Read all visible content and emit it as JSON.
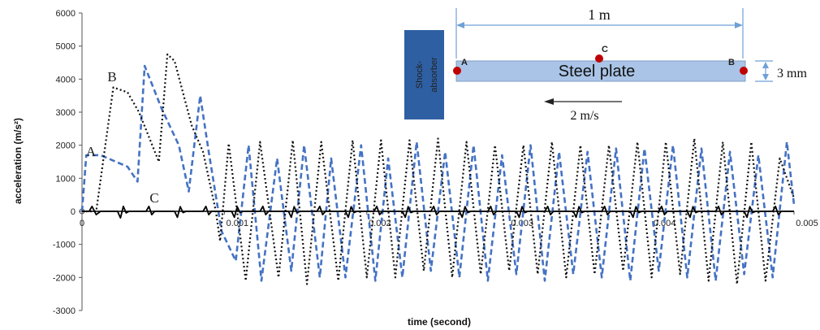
{
  "chart_data": {
    "type": "line",
    "xlabel": "time (second)",
    "ylabel": "acceleration (m/s²)",
    "xlim": [
      0,
      0.005
    ],
    "ylim": [
      -3000,
      6000
    ],
    "x_ticks": [
      "0",
      "0.001",
      "0.002",
      "0.003",
      "0.004",
      "0.005"
    ],
    "y_ticks": [
      "-3000",
      "-2000",
      "-1000",
      "0",
      "1000",
      "2000",
      "3000",
      "4000",
      "5000",
      "6000"
    ],
    "series": [
      {
        "name": "A",
        "style": "dashed",
        "color": "#4472C4",
        "x": [
          0.0,
          3e-05,
          0.00013,
          0.00032,
          0.00039,
          0.00044,
          0.00056,
          0.00068,
          0.00075,
          0.00083,
          0.00089,
          0.00098,
          0.00108,
          0.00117,
          0.00126,
          0.00137,
          0.00147,
          0.00156,
          0.00167,
          0.00175,
          0.00185,
          0.00196,
          0.00206,
          0.00215,
          0.00225,
          0.00235,
          0.00245,
          0.00255,
          0.00265,
          0.00275,
          0.00285,
          0.00295,
          0.00305,
          0.00315,
          0.00325,
          0.00335,
          0.00345,
          0.00355,
          0.00365,
          0.00375,
          0.00385,
          0.00395,
          0.00405,
          0.00415,
          0.00425,
          0.00435,
          0.00445,
          0.00455,
          0.00465,
          0.00475,
          0.00485,
          0.00495,
          0.005
        ],
        "y": [
          0,
          1700,
          1700,
          1350,
          900,
          4400,
          3100,
          2000,
          600,
          3500,
          1800,
          -600,
          -1500,
          2000,
          -2100,
          1600,
          -1800,
          2000,
          -2000,
          1600,
          -2000,
          2000,
          -2100,
          1600,
          -2000,
          2100,
          -1800,
          1800,
          -2000,
          2000,
          -2100,
          1700,
          -1900,
          2000,
          -2100,
          1800,
          -1900,
          1800,
          -2000,
          1900,
          -2100,
          1900,
          -1800,
          2000,
          -2000,
          1900,
          -2100,
          1800,
          -1900,
          1700,
          -2000,
          2100,
          200
        ]
      },
      {
        "name": "B",
        "style": "dotted",
        "color": "#111111",
        "x": [
          0.0,
          0.0001,
          0.00022,
          0.00032,
          0.0004,
          0.00054,
          0.0006,
          0.00065,
          0.00077,
          0.00085,
          0.00094,
          0.00097,
          0.00103,
          0.00115,
          0.00125,
          0.00138,
          0.00148,
          0.00158,
          0.00168,
          0.0018,
          0.0019,
          0.002,
          0.0021,
          0.0022,
          0.0023,
          0.0024,
          0.0025,
          0.0026,
          0.0027,
          0.0028,
          0.0029,
          0.003,
          0.0031,
          0.0032,
          0.0033,
          0.0034,
          0.0035,
          0.0036,
          0.0037,
          0.0038,
          0.0039,
          0.004,
          0.0041,
          0.0042,
          0.0043,
          0.0044,
          0.0045,
          0.0046,
          0.0047,
          0.0048,
          0.0049,
          0.005
        ],
        "y": [
          0,
          0,
          3750,
          3600,
          3000,
          1500,
          4750,
          4550,
          2600,
          1800,
          0,
          -900,
          2050,
          -2100,
          2100,
          -2000,
          2150,
          -2200,
          2100,
          -2100,
          2150,
          -2000,
          2150,
          -2000,
          2150,
          -1800,
          2200,
          -2000,
          2100,
          -1900,
          2000,
          -1800,
          2000,
          -1900,
          2100,
          -2000,
          2000,
          -1900,
          2000,
          -1800,
          2100,
          -2000,
          2100,
          -1900,
          2200,
          -2100,
          2100,
          -2200,
          2100,
          -2100,
          1600,
          400
        ]
      },
      {
        "name": "C",
        "style": "solid",
        "color": "#000000",
        "x": [
          0.0,
          5e-05,
          7e-05,
          0.0001,
          0.00013,
          0.00025,
          0.00027,
          0.00029,
          0.00031,
          0.00033,
          0.00045,
          0.00047,
          0.00049,
          0.00051,
          0.00053,
          0.00065,
          0.00067,
          0.00069,
          0.00071,
          0.00073,
          0.00085,
          0.00087,
          0.00089,
          0.00091,
          0.00093,
          0.00105,
          0.00107,
          0.00109,
          0.00111,
          0.00113,
          0.00125,
          0.00127,
          0.00129,
          0.00131,
          0.00133,
          0.00145,
          0.00147,
          0.00149,
          0.00151,
          0.00153,
          0.00165,
          0.00167,
          0.00169,
          0.00171,
          0.00173,
          0.00185,
          0.00187,
          0.00189,
          0.00191,
          0.00193,
          0.00205,
          0.00207,
          0.00209,
          0.00211,
          0.00213,
          0.00225,
          0.00227,
          0.00229,
          0.00231,
          0.00233,
          0.00245,
          0.00247,
          0.00249,
          0.00251,
          0.00253,
          0.00265,
          0.00267,
          0.00269,
          0.00271,
          0.00273,
          0.00285,
          0.00287,
          0.00289,
          0.00291,
          0.00293,
          0.00305,
          0.00307,
          0.00309,
          0.00311,
          0.00313,
          0.00325,
          0.00327,
          0.00329,
          0.00331,
          0.00333,
          0.00345,
          0.00347,
          0.00349,
          0.00351,
          0.00353,
          0.00365,
          0.00367,
          0.00369,
          0.00371,
          0.00373,
          0.00385,
          0.00387,
          0.00389,
          0.00391,
          0.00393,
          0.00405,
          0.00407,
          0.00409,
          0.00411,
          0.00413,
          0.00425,
          0.00427,
          0.00429,
          0.00431,
          0.00433,
          0.00445,
          0.00447,
          0.00449,
          0.00451,
          0.00453,
          0.00465,
          0.00467,
          0.00469,
          0.00471,
          0.00473,
          0.00485,
          0.00487,
          0.00489,
          0.00491,
          0.00493,
          0.005
        ],
        "y": [
          0,
          0,
          150,
          -100,
          0,
          0,
          -200,
          150,
          -50,
          0,
          0,
          150,
          -100,
          0,
          0,
          0,
          -180,
          140,
          -40,
          0,
          0,
          150,
          -100,
          0,
          0,
          0,
          -180,
          140,
          -40,
          0,
          0,
          150,
          -100,
          0,
          0,
          0,
          -180,
          140,
          -40,
          0,
          0,
          150,
          -100,
          0,
          0,
          0,
          -180,
          140,
          -40,
          0,
          0,
          150,
          -100,
          0,
          0,
          0,
          -180,
          140,
          -40,
          0,
          0,
          150,
          -100,
          0,
          0,
          0,
          -180,
          140,
          -40,
          0,
          0,
          150,
          -100,
          0,
          0,
          0,
          -180,
          140,
          -40,
          0,
          0,
          150,
          -100,
          0,
          0,
          0,
          -180,
          140,
          -40,
          0,
          0,
          150,
          -100,
          0,
          0,
          0,
          -180,
          140,
          -40,
          0,
          0,
          150,
          -100,
          0,
          0,
          0,
          -180,
          140,
          -40,
          0,
          0,
          150,
          -100,
          0,
          0,
          0,
          -180,
          140,
          -40,
          0,
          0,
          150,
          -100,
          0,
          0,
          0
        ]
      }
    ],
    "annotations": {
      "curve_labels": [
        "A",
        "B",
        "C"
      ]
    }
  },
  "inset": {
    "absorber_label_line1": "Shock-",
    "absorber_label_line2": "absorber",
    "plate_label": "Steel plate",
    "length_label": "1 m",
    "thickness_label": "3 mm",
    "velocity_label": "2 m/s",
    "point_labels": [
      "A",
      "B",
      "C"
    ],
    "absorber_color": "#2E5FA3",
    "plate_color": "#A9C4E6",
    "point_color": "#C00000"
  }
}
